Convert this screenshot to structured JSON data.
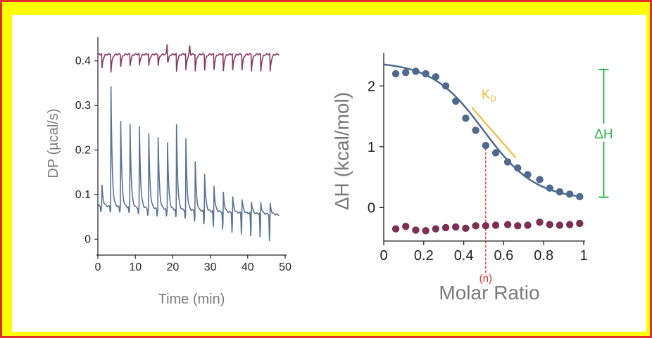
{
  "chart_data": [
    {
      "type": "line",
      "xlabel": "Time (min)",
      "ylabel": "DP (µcal/s)",
      "xlim": [
        0,
        50
      ],
      "ylim": [
        -0.02,
        0.45
      ],
      "x_ticks": [
        "0",
        "10",
        "20",
        "30",
        "40",
        "50"
      ],
      "y_ticks": [
        "0",
        "0.1",
        "0.2",
        "0.3",
        "0.4"
      ],
      "series": [
        {
          "color": "#8a3a5c",
          "baseline": 0.415,
          "injection_times": [
            1,
            3.5,
            6,
            8.5,
            11,
            13.5,
            16,
            18.5,
            21,
            23.5,
            26,
            28.5,
            31,
            33.5,
            36,
            38.5,
            41,
            43.5,
            46
          ],
          "peak_values": [
            0.37,
            0.375,
            0.378,
            0.38,
            0.38,
            0.378,
            0.38,
            0.376,
            0.375,
            0.378,
            0.377,
            0.38,
            0.38,
            0.376,
            0.378,
            0.38,
            0.378,
            0.376,
            0.375
          ],
          "up_spikes": [
            [
              18.5,
              0.438
            ],
            [
              24.5,
              0.435
            ]
          ]
        },
        {
          "color": "#5a7391",
          "baseline_start": 0.075,
          "baseline_end": 0.055,
          "injection_times": [
            1,
            3.5,
            6,
            8.5,
            11,
            13.5,
            16,
            18.5,
            21,
            23.5,
            26,
            28.5,
            31,
            33.5,
            36,
            38.5,
            41,
            43.5,
            46
          ],
          "peak_values": [
            0.138,
            0.344,
            0.34,
            0.33,
            0.32,
            0.3,
            0.29,
            0.276,
            0.257,
            0.225,
            0.175,
            0.148,
            0.12,
            0.105,
            0.095,
            0.09,
            0.085,
            0.083,
            0.08
          ],
          "dip_values": [
            0.06,
            0.06,
            0.058,
            0.056,
            0.054,
            0.052,
            0.05,
            0.048,
            0.046,
            0.044,
            0.038,
            0.03,
            0.022,
            0.016,
            0.01,
            0.006,
            0.0,
            -0.004,
            -0.012
          ]
        }
      ]
    },
    {
      "type": "scatter",
      "xlabel": "Molar Ratio",
      "ylabel": "ΔH (kcal/mol)",
      "xlim": [
        0,
        1.0
      ],
      "ylim": [
        -0.55,
        2.5
      ],
      "x_ticks": [
        "0",
        "0.2",
        "0.4",
        "0.6",
        "0.8",
        "1"
      ],
      "y_ticks": [
        "0",
        "1",
        "2"
      ],
      "series": [
        {
          "color": "#4f6a8e",
          "x": [
            0.06,
            0.11,
            0.16,
            0.21,
            0.26,
            0.31,
            0.36,
            0.41,
            0.46,
            0.51,
            0.56,
            0.62,
            0.67,
            0.72,
            0.78,
            0.83,
            0.88,
            0.93,
            0.98
          ],
          "y": [
            2.2,
            2.22,
            2.24,
            2.2,
            2.15,
            2.0,
            1.75,
            1.47,
            1.27,
            1.02,
            0.9,
            0.75,
            0.65,
            0.54,
            0.46,
            0.32,
            0.26,
            0.22,
            0.18
          ]
        },
        {
          "color": "#7a2f55",
          "x": [
            0.06,
            0.11,
            0.16,
            0.21,
            0.26,
            0.31,
            0.36,
            0.41,
            0.46,
            0.51,
            0.56,
            0.62,
            0.67,
            0.72,
            0.78,
            0.83,
            0.88,
            0.93,
            0.98
          ],
          "y": [
            -0.35,
            -0.31,
            -0.37,
            -0.38,
            -0.35,
            -0.33,
            -0.32,
            -0.34,
            -0.3,
            -0.3,
            -0.29,
            -0.28,
            -0.3,
            -0.29,
            -0.24,
            -0.28,
            -0.29,
            -0.28,
            -0.26
          ]
        }
      ],
      "fit_curve": {
        "color": "#4f6a8e",
        "top": 2.4,
        "bottom": 0.13,
        "midpoint": 0.5,
        "slope": 0.13
      },
      "annotations": {
        "kd_label": "K",
        "kd_sub": "D",
        "kd_color": "#f2b833",
        "kd_line": {
          "x": [
            0.44,
            0.66
          ],
          "y": [
            1.65,
            0.82
          ]
        },
        "dh_label": "ΔH",
        "dh_color": "#2fb84a",
        "dh_bracket": {
          "x": 1.1,
          "y": [
            0.17,
            2.27
          ]
        },
        "n_label": "(n)",
        "n_color": "#e0302a",
        "n_line": {
          "x": 0.51,
          "y": [
            -0.55,
            1.05
          ]
        }
      }
    }
  ]
}
